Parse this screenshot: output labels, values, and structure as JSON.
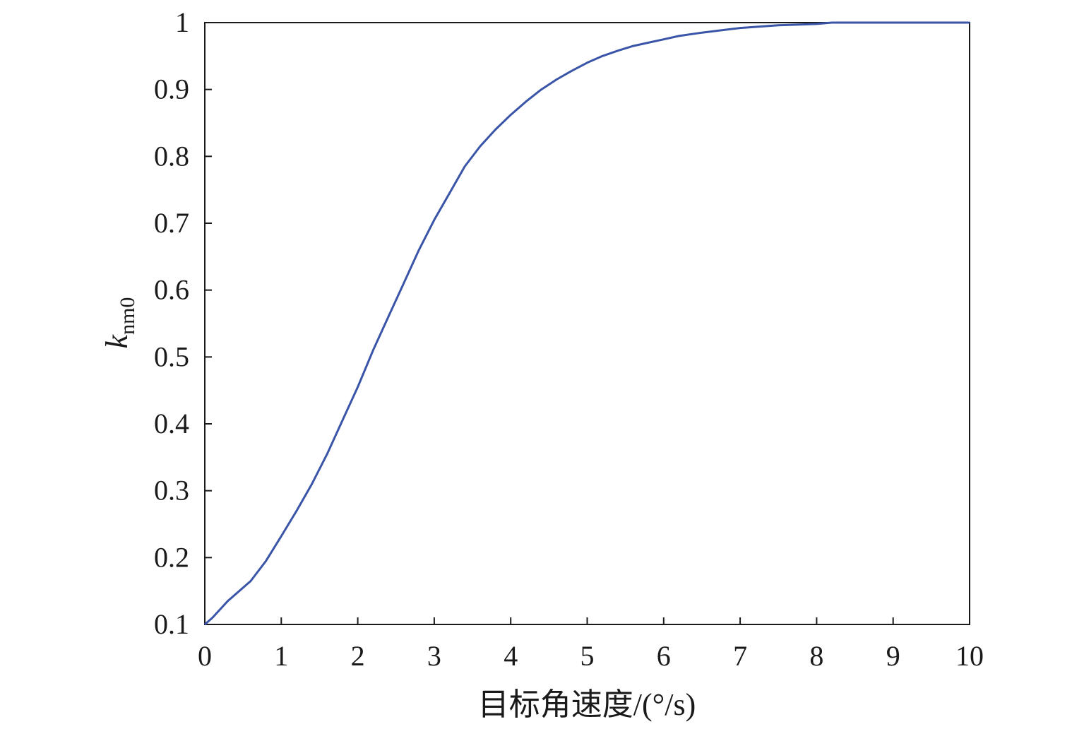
{
  "chart_data": {
    "type": "line",
    "title": "",
    "xlabel": "目标角速度/(°/s)",
    "ylabel": {
      "main": "k",
      "sub": "nm0"
    },
    "xlim": [
      0,
      10
    ],
    "ylim": [
      0.1,
      1
    ],
    "x_ticks": [
      0,
      1,
      2,
      3,
      4,
      5,
      6,
      7,
      8,
      9,
      10
    ],
    "x_tick_labels": [
      "0",
      "1",
      "2",
      "3",
      "4",
      "5",
      "6",
      "7",
      "8",
      "9",
      "10"
    ],
    "y_ticks": [
      0.1,
      0.2,
      0.3,
      0.4,
      0.5,
      0.6,
      0.7,
      0.8,
      0.9,
      1
    ],
    "y_tick_labels": [
      "0.1",
      "0.2",
      "0.3",
      "0.4",
      "0.5",
      "0.6",
      "0.7",
      "0.8",
      "0.9",
      "1"
    ],
    "grid": false,
    "legend": "none",
    "series": [
      {
        "color": "#3a55a8",
        "x": [
          0,
          0.1,
          0.3,
          0.6,
          0.8,
          1.0,
          1.2,
          1.4,
          1.6,
          1.8,
          2.0,
          2.2,
          2.4,
          2.6,
          2.8,
          3.0,
          3.2,
          3.4,
          3.6,
          3.8,
          4.0,
          4.2,
          4.4,
          4.6,
          4.8,
          5.0,
          5.2,
          5.4,
          5.6,
          5.8,
          6.0,
          6.2,
          6.5,
          7.0,
          7.5,
          8.0,
          8.2,
          9.0,
          10.0
        ],
        "y": [
          0.1,
          0.11,
          0.135,
          0.165,
          0.195,
          0.232,
          0.27,
          0.31,
          0.355,
          0.405,
          0.455,
          0.51,
          0.56,
          0.61,
          0.66,
          0.705,
          0.745,
          0.785,
          0.815,
          0.84,
          0.862,
          0.882,
          0.9,
          0.915,
          0.928,
          0.94,
          0.95,
          0.958,
          0.965,
          0.97,
          0.975,
          0.98,
          0.985,
          0.992,
          0.996,
          0.998,
          1.0,
          1.0,
          1.0
        ]
      }
    ]
  }
}
